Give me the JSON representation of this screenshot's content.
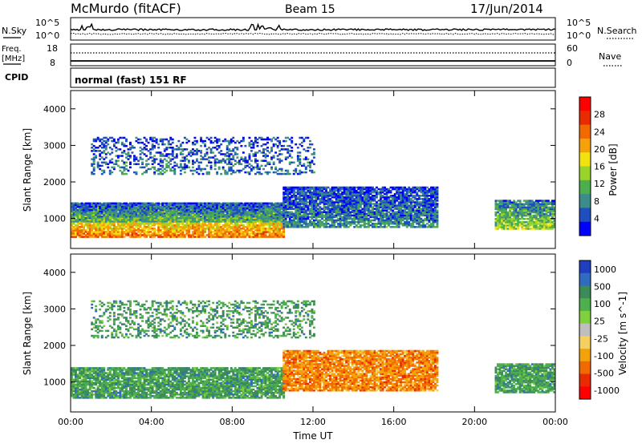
{
  "header": {
    "station": "McMurdo (fitACF)",
    "beam": "Beam 15",
    "date": "17/Jun/2014"
  },
  "noise_panel": {
    "left_label": "N.Sky",
    "right_label": "N.Search",
    "left_ticks": [
      "10^5",
      "10^0"
    ],
    "right_ticks": [
      "10^5",
      "10^0"
    ]
  },
  "freq_panel": {
    "left_label_1": "Freq.",
    "left_label_2": "[MHz]",
    "right_label": "Nave",
    "left_ticks": [
      "18",
      "8"
    ],
    "right_ticks": [
      "60",
      "0"
    ]
  },
  "cpid": {
    "label": "CPID",
    "mode": "normal (fast) 151 RF"
  },
  "chart_data": [
    {
      "type": "heatmap",
      "name": "power",
      "ylabel": "Slant Range [km]",
      "ylim": [
        180,
        4500
      ],
      "y_ticks": [
        1000,
        2000,
        3000,
        4000
      ],
      "x_ticks": [
        "00:00",
        "04:00",
        "08:00",
        "12:00",
        "16:00",
        "20:00",
        "00:00"
      ],
      "colorbar_label": "Power [dB]",
      "colorbar_ticks": [
        "4",
        "8",
        "12",
        "16",
        "20",
        "24",
        "28"
      ],
      "colors": [
        "#0000ff",
        "#1f4fbf",
        "#3c8c8c",
        "#4cae4c",
        "#9ad32a",
        "#f2e20f",
        "#f5a20a",
        "#f06a00",
        "#ea2a00",
        "#ff0000"
      ],
      "regions": [
        {
          "t0": 0.0,
          "t1": 10.5,
          "r0": 480,
          "r1": 1400,
          "v": 23
        },
        {
          "t0": 0.0,
          "t1": 10.5,
          "r0": 900,
          "r1": 1400,
          "v": 10
        },
        {
          "t0": 10.5,
          "t1": 18.2,
          "r0": 750,
          "r1": 1850,
          "v": 7
        },
        {
          "t0": 21.0,
          "t1": 24.0,
          "r0": 700,
          "r1": 1500,
          "v": 14
        },
        {
          "t0": 1.0,
          "t1": 12.0,
          "r0": 2200,
          "r1": 3200,
          "v": 6
        }
      ]
    },
    {
      "type": "heatmap",
      "name": "velocity",
      "ylabel": "Slant Range [km]",
      "ylim": [
        180,
        4500
      ],
      "y_ticks": [
        1000,
        2000,
        3000,
        4000
      ],
      "x_ticks": [
        "00:00",
        "04:00",
        "08:00",
        "12:00",
        "16:00",
        "20:00",
        "00:00"
      ],
      "xlabel": "Time UT",
      "colorbar_label": "Velocity [m s^-1]",
      "colorbar_ticks": [
        "1000",
        "500",
        "100",
        "25",
        "-25",
        "-100",
        "-500",
        "-1000"
      ],
      "colors": [
        "#1f3fbf",
        "#2f6bbf",
        "#3d8a5a",
        "#4daf4d",
        "#7fd03f",
        "#bfbfbf",
        "#f5d060",
        "#f5a20a",
        "#f06a00",
        "#ea2a00",
        "#ff0000"
      ],
      "regions": [
        {
          "t0": 0.0,
          "t1": 10.5,
          "r0": 550,
          "r1": 1400,
          "v": 30
        },
        {
          "t0": 10.5,
          "t1": 18.2,
          "r0": 750,
          "r1": 1850,
          "v": -80
        },
        {
          "t0": 21.0,
          "t1": 24.0,
          "r0": 700,
          "r1": 1500,
          "v": 200
        },
        {
          "t0": 1.0,
          "t1": 12.0,
          "r0": 2200,
          "r1": 3200,
          "v": 60
        }
      ]
    }
  ]
}
